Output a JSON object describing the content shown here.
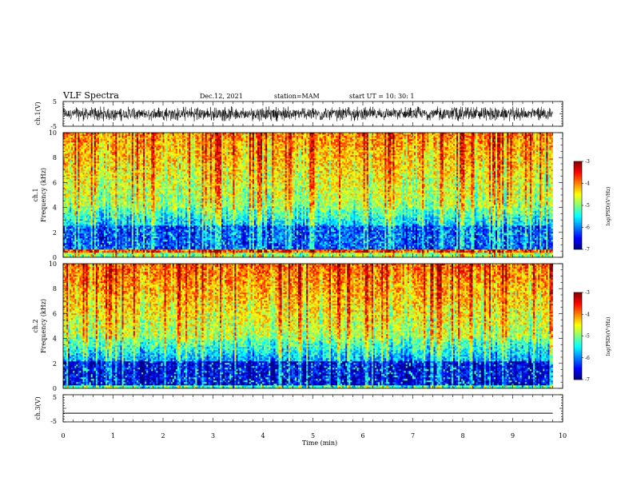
{
  "header": {
    "title": "VLF Spectra",
    "date": "Dec.12, 2021",
    "station": "station=MAM",
    "start": "start UT = 10: 30: 1"
  },
  "chart_data": [
    {
      "type": "line",
      "panel": "ch1-waveform",
      "ylabel": "ch.1(V)",
      "ylim": [
        -5,
        5
      ],
      "yticks": [
        5,
        -5
      ],
      "xlim": [
        0,
        10
      ],
      "description_signal": "dense noise",
      "amplitude_range": [
        -3,
        3
      ],
      "color": "#000000"
    },
    {
      "type": "heatmap",
      "panel": "ch1-spectrogram",
      "ylabel_line1": "ch.1",
      "ylabel_line2": "Frequency (kHz)",
      "ylim": [
        0,
        10
      ],
      "yticks": [
        "0",
        "2",
        "4",
        "6",
        "8",
        "10"
      ],
      "xlim": [
        0,
        9.8
      ],
      "colorbar": {
        "label": "log(PSD)(V²/Hz)",
        "range": [
          -7,
          -3
        ],
        "ticks": [
          "-3",
          "-4",
          "-5",
          "-6",
          "-7"
        ]
      }
    },
    {
      "type": "heatmap",
      "panel": "ch2-spectrogram",
      "ylabel_line1": "ch.2",
      "ylabel_line2": "Frequency (kHz)",
      "ylim": [
        0,
        10
      ],
      "yticks": [
        "0",
        "2",
        "4",
        "6",
        "8",
        "10"
      ],
      "xlim": [
        0,
        9.8
      ],
      "colorbar": {
        "label": "log(PSD)(V²/Hz)",
        "range": [
          -7,
          -3
        ],
        "ticks": [
          "-3",
          "-4",
          "-5",
          "-6",
          "-7"
        ]
      }
    },
    {
      "type": "line",
      "panel": "ch3-waveform",
      "ylabel": "ch.3(V)",
      "ylim": [
        -5,
        5
      ],
      "yticks": [
        "5",
        "-5"
      ],
      "x": [
        0,
        9.8
      ],
      "y": [
        -1.8,
        -1.8
      ],
      "xlabel": "Time (min)",
      "xlim": [
        0,
        10
      ],
      "xticks": [
        "0",
        "1",
        "2",
        "3",
        "4",
        "5",
        "6",
        "7",
        "8",
        "9",
        "10"
      ]
    }
  ]
}
